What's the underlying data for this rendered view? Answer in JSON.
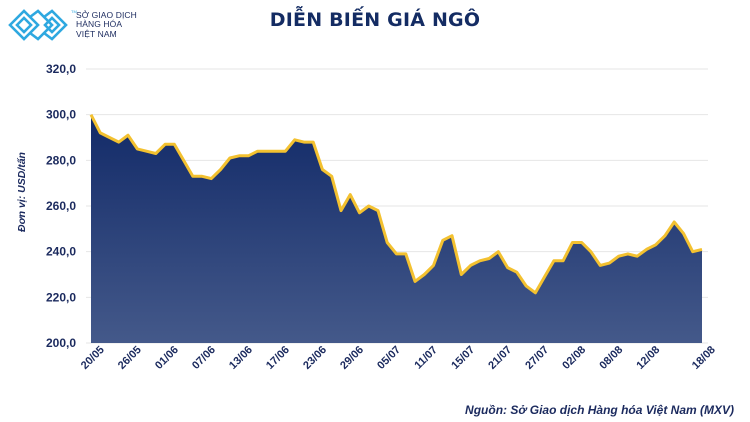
{
  "header": {
    "logo_lines": [
      "SỞ GIAO DỊCH",
      "HÀNG HÓA",
      "VIỆT NAM"
    ],
    "logo_tm": "TM",
    "title": "DIỄN BIẾN GIÁ NGÔ"
  },
  "footer": {
    "source": "Nguồn: Sở Giao dịch Hàng hóa Việt Nam (MXV)"
  },
  "colors": {
    "title": "#142c63",
    "area_top": "#122a68",
    "area_bottom": "#44598a",
    "line": "#f3c130",
    "grid": "#e6e6e6",
    "text": "#1b2a5e",
    "logo_accent": "#2ea8e0"
  },
  "chart_data": {
    "type": "area",
    "title": "DIỄN BIẾN GIÁ NGÔ",
    "xlabel": "",
    "ylabel": "Đơn vị: USD/tấn",
    "ylim": [
      200,
      320
    ],
    "yticks": [
      "200,0",
      "220,0",
      "240,0",
      "260,0",
      "280,0",
      "300,0",
      "320,0"
    ],
    "ytick_values": [
      200,
      220,
      240,
      260,
      280,
      300,
      320
    ],
    "grid": true,
    "legend": "none",
    "x_tick_labels": [
      "20/05",
      "26/05",
      "01/06",
      "07/06",
      "13/06",
      "17/06",
      "23/06",
      "29/06",
      "05/07",
      "11/07",
      "15/07",
      "21/07",
      "27/07",
      "02/08",
      "08/08",
      "12/08",
      "18/08"
    ],
    "x_tick_indices": [
      0,
      4,
      8,
      12,
      16,
      20,
      24,
      28,
      32,
      36,
      40,
      44,
      48,
      52,
      56,
      60,
      66
    ],
    "series": [
      {
        "name": "Giá ngô",
        "values": [
          300,
          292,
          290,
          288,
          291,
          285,
          284,
          283,
          287,
          287,
          280,
          273,
          273,
          272,
          276,
          281,
          282,
          282,
          284,
          284,
          284,
          284,
          289,
          288,
          288,
          276,
          273,
          258,
          265,
          257,
          260,
          258,
          244,
          239,
          239,
          227,
          230,
          234,
          245,
          247,
          230,
          234,
          236,
          237,
          240,
          233,
          231,
          225,
          222,
          229,
          236,
          236,
          244,
          244,
          240,
          234,
          235,
          238,
          239,
          238,
          241,
          243,
          247,
          253,
          248,
          240,
          241
        ]
      }
    ],
    "source": "Nguồn: Sở Giao dịch Hàng hóa Việt Nam (MXV)"
  }
}
